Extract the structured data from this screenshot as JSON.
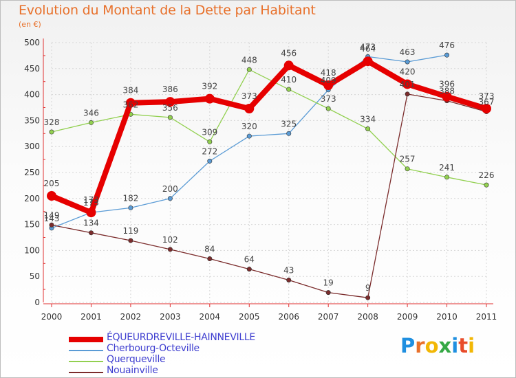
{
  "title": "Evolution du Montant de la Dette par Habitant",
  "unit": "(en €)",
  "brand_logo": "Proxiti",
  "chart_data": {
    "type": "line",
    "title": "Evolution du Montant de la Dette par Habitant",
    "ylabel": "(en €)",
    "ylim": [
      0,
      500
    ],
    "yticks": [
      0,
      50,
      100,
      150,
      200,
      250,
      300,
      350,
      400,
      450,
      500
    ],
    "categories": [
      "2000",
      "2001",
      "2002",
      "2003",
      "2004",
      "2005",
      "2006",
      "2007",
      "2008",
      "2009",
      "2010",
      "2011"
    ],
    "grid": true,
    "legend_position": "bottom-left",
    "series": [
      {
        "name": "ÉQUEURDREVILLE-HAINNEVILLE",
        "color": "#e60000",
        "emphasis": true,
        "values": [
          205,
          173,
          384,
          386,
          392,
          373,
          456,
          418,
          464,
          420,
          396,
          373
        ]
      },
      {
        "name": "Cherbourg-Octeville",
        "color": "#5a9bd5",
        "values": [
          143,
          173,
          182,
          200,
          272,
          320,
          325,
          409,
          473,
          463,
          476,
          null
        ]
      },
      {
        "name": "Querqueville",
        "color": "#92d050",
        "values": [
          328,
          346,
          362,
          356,
          309,
          448,
          410,
          373,
          334,
          257,
          241,
          226
        ]
      },
      {
        "name": "Nouainville",
        "color": "#7b2c2c",
        "values": [
          149,
          134,
          119,
          102,
          84,
          64,
          43,
          19,
          9,
          401,
          388,
          367
        ]
      }
    ]
  }
}
